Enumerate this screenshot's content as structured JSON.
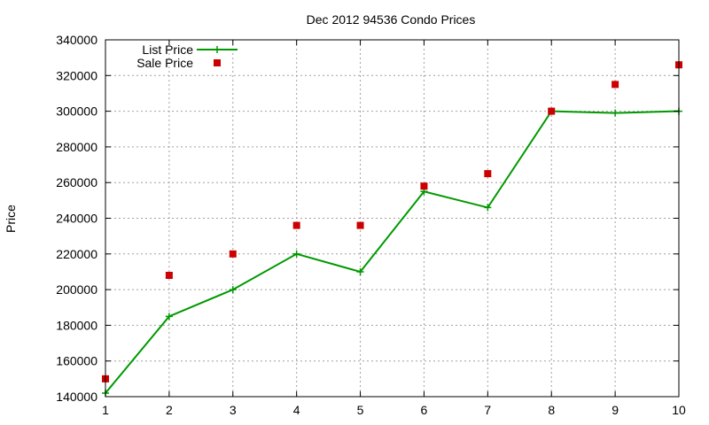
{
  "chart_data": {
    "type": "line",
    "title": "Dec 2012 94536 Condo Prices",
    "xlabel": "",
    "ylabel": "Price",
    "x": [
      1,
      2,
      3,
      4,
      5,
      6,
      7,
      8,
      9,
      10
    ],
    "xlim": [
      1,
      10
    ],
    "ylim": [
      140000,
      340000
    ],
    "x_ticks": [
      "1",
      "2",
      "3",
      "4",
      "5",
      "6",
      "7",
      "8",
      "9",
      "10"
    ],
    "y_ticks": [
      "140000",
      "160000",
      "180000",
      "200000",
      "220000",
      "240000",
      "260000",
      "280000",
      "300000",
      "320000",
      "340000"
    ],
    "grid": true,
    "legend_position": "top-left",
    "series": [
      {
        "name": "List Price",
        "style": "line-with-plus-markers",
        "color": "#009900",
        "values": [
          142000,
          185000,
          200000,
          220000,
          210000,
          255000,
          246000,
          300000,
          299000,
          300000
        ]
      },
      {
        "name": "Sale Price",
        "style": "square-markers",
        "color": "#cc0000",
        "values": [
          150000,
          208000,
          220000,
          236000,
          236000,
          258000,
          265000,
          300000,
          315000,
          326000
        ]
      }
    ]
  }
}
